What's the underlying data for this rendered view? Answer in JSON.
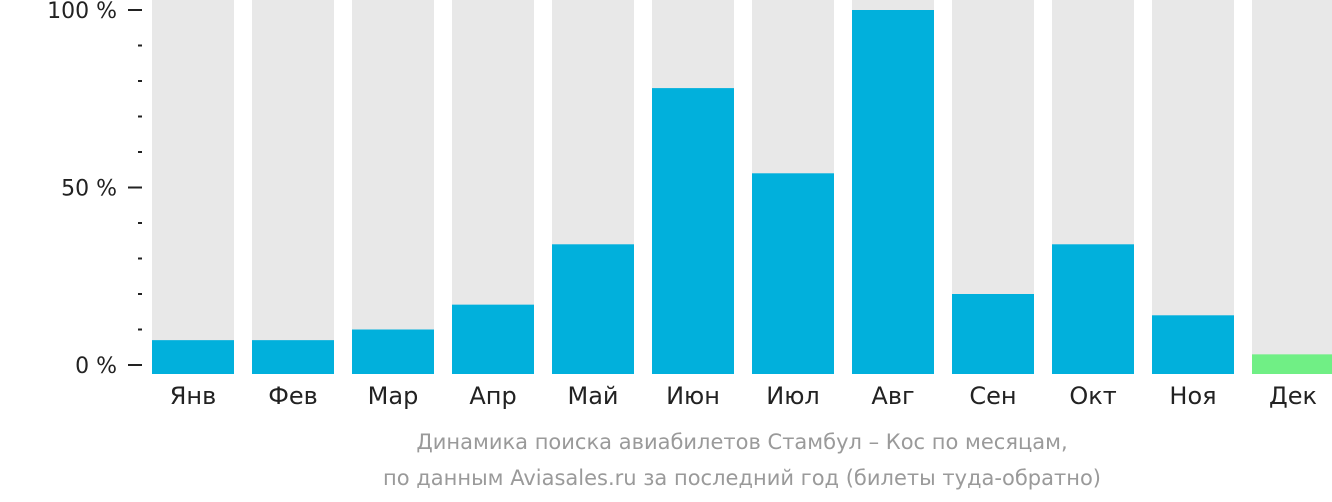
{
  "chart_data": {
    "type": "bar",
    "categories": [
      "Янв",
      "Фев",
      "Мар",
      "Апр",
      "Май",
      "Июн",
      "Июл",
      "Авг",
      "Сен",
      "Окт",
      "Ноя",
      "Дек"
    ],
    "values": [
      7,
      7,
      10,
      17,
      34,
      78,
      54,
      100,
      20,
      34,
      14,
      3
    ],
    "highlight_index": 11,
    "ylim": [
      0,
      100
    ],
    "yticks": [
      {
        "value": 0,
        "label": "0 %"
      },
      {
        "value": 50,
        "label": "50 %"
      },
      {
        "value": 100,
        "label": "100 %"
      }
    ],
    "minor_tick_step": 10,
    "colors": {
      "bar": "#01b0dc",
      "highlight": "#70ef85",
      "track": "#e8e8e8",
      "axis": "#222222"
    }
  },
  "caption": {
    "line1": "Динамика поиска авиабилетов Стамбул – Кос по месяцам,",
    "line2": "по данным Aviasales.ru за последний год (билеты туда-обратно)"
  }
}
